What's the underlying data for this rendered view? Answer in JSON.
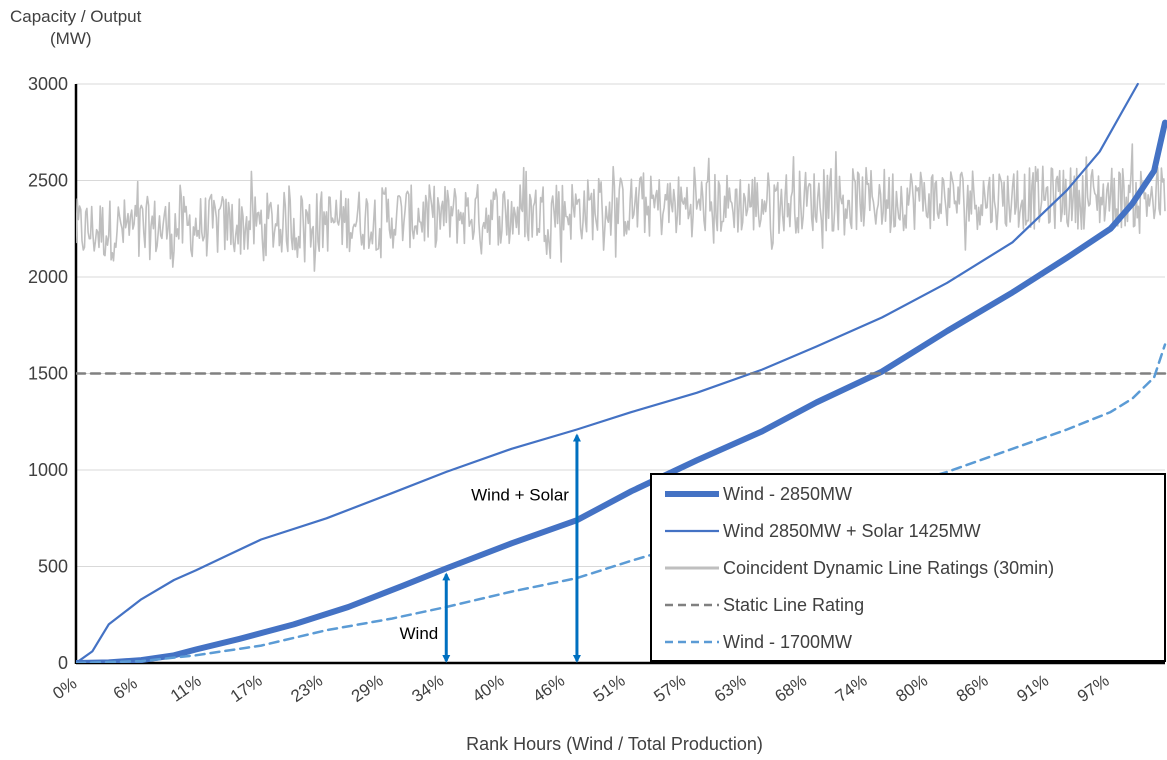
{
  "chart_data": {
    "type": "line",
    "ylabel_line1": "Capacity / Output",
    "ylabel_line2": "(MW)",
    "xlabel": "Rank Hours (Wind / Total Production)",
    "ylim": [
      0,
      3000
    ],
    "xlim": [
      0,
      100
    ],
    "y_ticks": [
      0,
      500,
      1000,
      1500,
      2000,
      2500,
      3000
    ],
    "x_tick_labels": [
      "0%",
      "6%",
      "11%",
      "17%",
      "23%",
      "29%",
      "34%",
      "40%",
      "46%",
      "51%",
      "57%",
      "63%",
      "68%",
      "74%",
      "80%",
      "86%",
      "91%",
      "97%"
    ],
    "grid": "horizontal",
    "legend_position": "bottom-right",
    "series": [
      {
        "name": "Wind - 2850MW",
        "color": "#4472C4",
        "style": "thick-solid",
        "x": [
          0,
          3,
          6,
          9,
          11,
          15,
          20,
          25,
          30,
          34,
          40,
          46,
          51,
          57,
          63,
          68,
          74,
          80,
          86,
          91,
          95,
          97,
          99,
          100
        ],
        "y": [
          0,
          3,
          15,
          40,
          70,
          125,
          200,
          290,
          400,
          490,
          620,
          740,
          890,
          1050,
          1200,
          1350,
          1510,
          1720,
          1920,
          2100,
          2250,
          2380,
          2550,
          2800
        ]
      },
      {
        "name": "Wind 2850MW + Solar 1425MW",
        "color": "#4472C4",
        "style": "solid",
        "x": [
          0,
          1.5,
          3,
          6,
          9,
          11,
          14,
          17,
          23,
          29,
          34,
          40,
          46,
          51,
          57,
          63,
          68,
          74,
          80,
          86,
          91,
          94,
          96,
          97.5
        ],
        "y": [
          0,
          60,
          200,
          330,
          430,
          480,
          560,
          640,
          750,
          880,
          990,
          1110,
          1210,
          1300,
          1400,
          1520,
          1640,
          1790,
          1970,
          2180,
          2450,
          2650,
          2850,
          3000
        ]
      },
      {
        "name": "Coincident Dynamic Line Ratings (30min)",
        "color": "#BFBFBF",
        "style": "noisy",
        "x": [
          0,
          10,
          20,
          30,
          40,
          50,
          60,
          70,
          80,
          90,
          100
        ],
        "y": [
          2240,
          2260,
          2280,
          2310,
          2330,
          2360,
          2380,
          2400,
          2410,
          2410,
          2420
        ]
      },
      {
        "name": "Static Line Rating",
        "color": "#808080",
        "style": "dashed",
        "x": [
          0,
          100
        ],
        "y": [
          1500,
          1500
        ]
      },
      {
        "name": "Wind - 1700MW",
        "color": "#5B9BD5",
        "style": "dashed",
        "x": [
          0,
          6,
          11,
          17,
          23,
          29,
          34,
          40,
          46,
          51,
          57,
          63,
          68,
          74,
          80,
          86,
          91,
          95,
          97,
          99,
          100
        ],
        "y": [
          0,
          10,
          40,
          90,
          170,
          230,
          290,
          370,
          440,
          530,
          630,
          720,
          810,
          890,
          990,
          1110,
          1210,
          1300,
          1370,
          1480,
          1650
        ]
      }
    ],
    "annotations": [
      {
        "text": "Wind + Solar",
        "x": 46,
        "y_from": 0,
        "y_to": 1210
      },
      {
        "text": "Wind",
        "x": 34,
        "y_from": 0,
        "y_to": 490
      }
    ]
  }
}
